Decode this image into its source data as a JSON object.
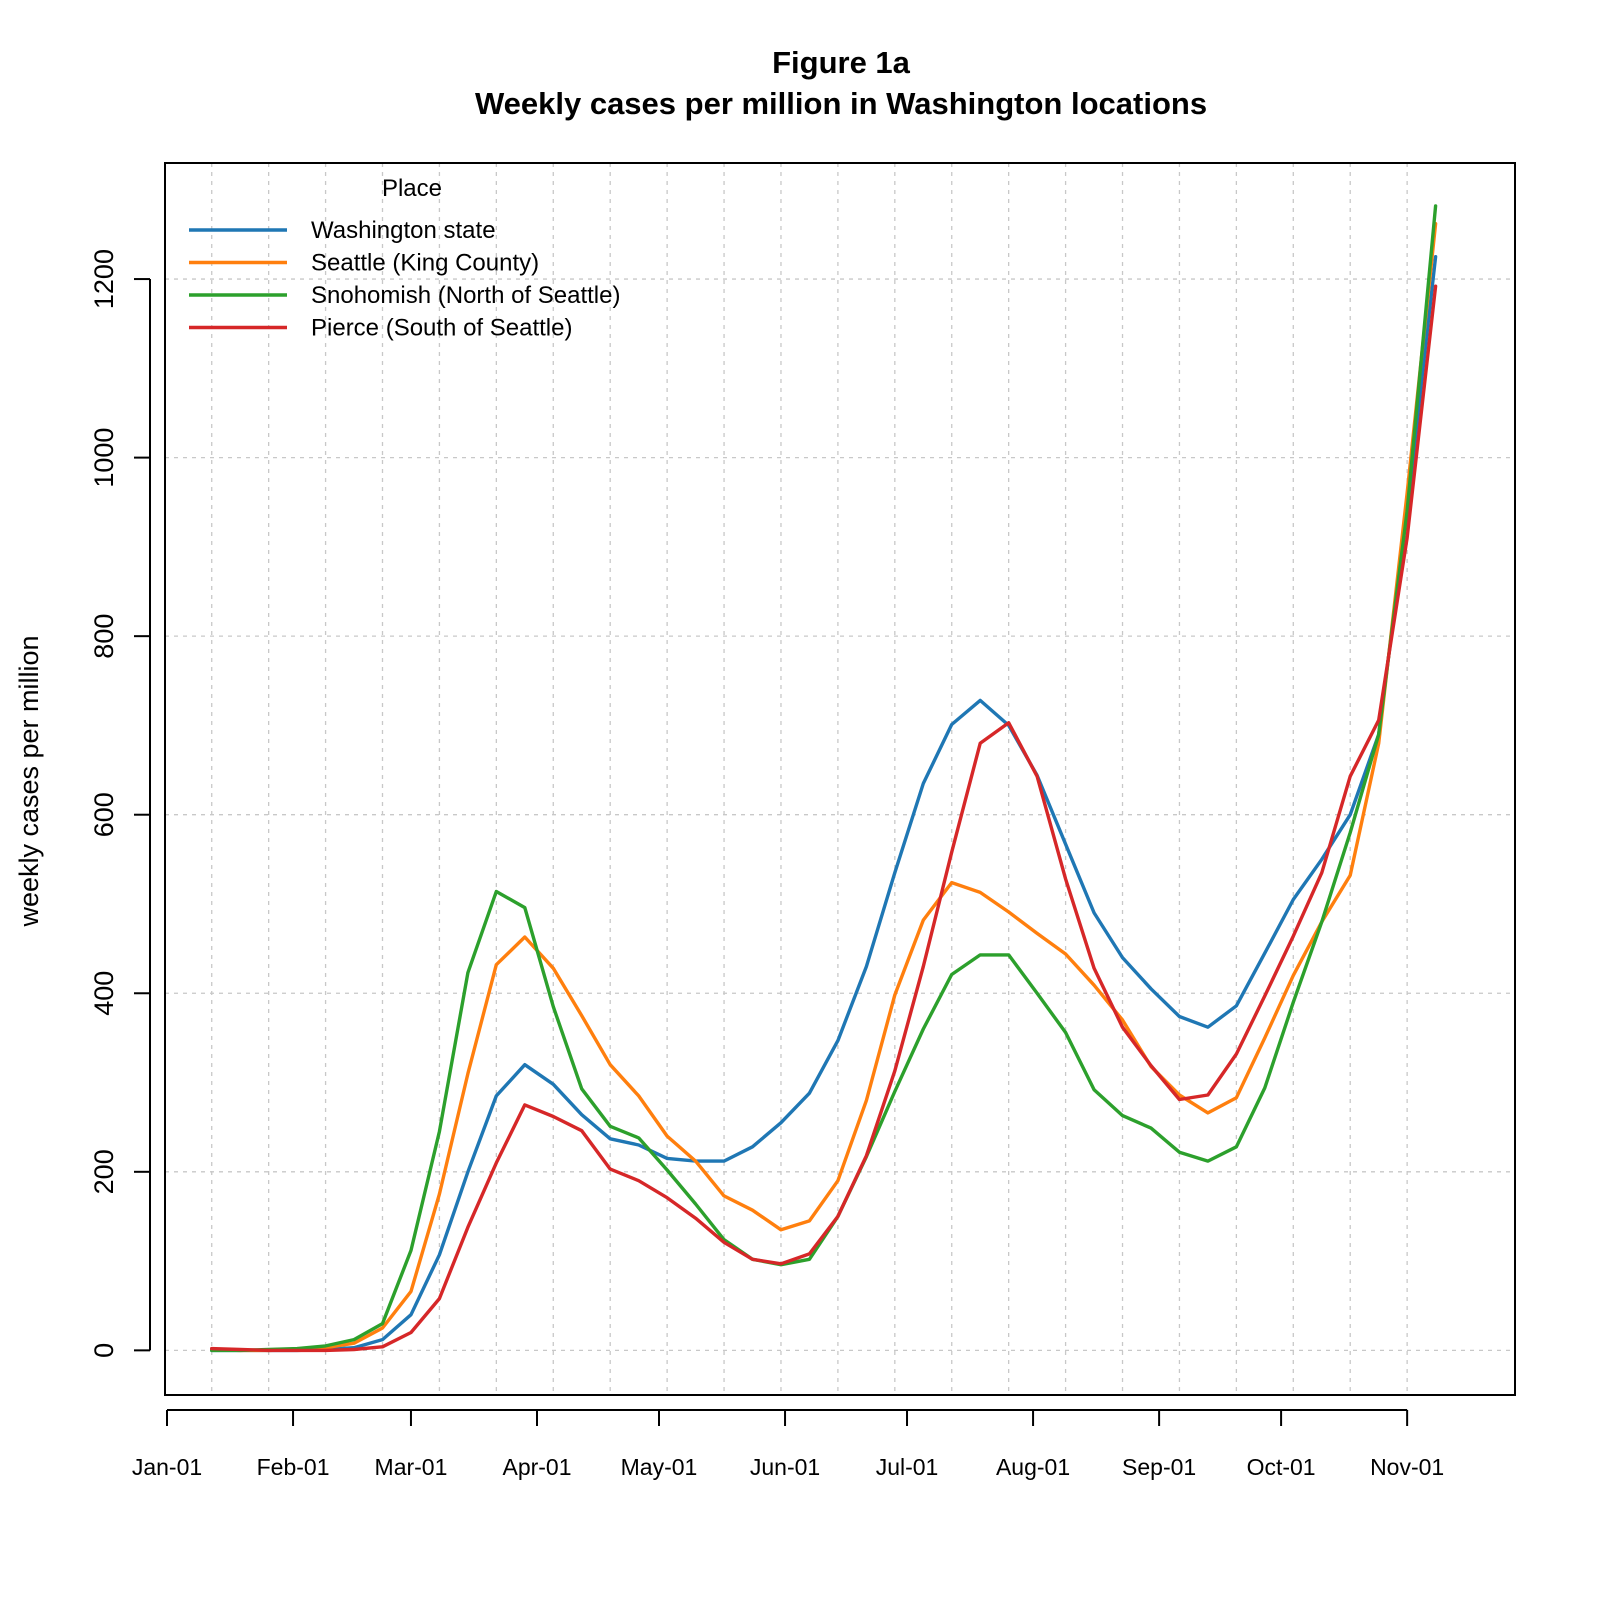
{
  "chart_data": {
    "type": "line",
    "title": "Figure 1a",
    "subtitle": "Weekly cases per million in Washington locations",
    "xlabel": "",
    "ylabel": "weekly cases per million",
    "x_axis": {
      "type": "date",
      "range": [
        "2020-01-01",
        "2020-11-14"
      ],
      "ticks": [
        {
          "date": "2020-01-01",
          "label": "Jan-01"
        },
        {
          "date": "2020-02-01",
          "label": "Feb-01"
        },
        {
          "date": "2020-03-01",
          "label": "Mar-01"
        },
        {
          "date": "2020-04-01",
          "label": "Apr-01"
        },
        {
          "date": "2020-05-01",
          "label": "May-01"
        },
        {
          "date": "2020-06-01",
          "label": "Jun-01"
        },
        {
          "date": "2020-07-01",
          "label": "Jul-01"
        },
        {
          "date": "2020-08-01",
          "label": "Aug-01"
        },
        {
          "date": "2020-09-01",
          "label": "Sep-01"
        },
        {
          "date": "2020-10-01",
          "label": "Oct-01"
        },
        {
          "date": "2020-11-01",
          "label": "Nov-01"
        }
      ]
    },
    "ylim": [
      -50,
      1330
    ],
    "yticks": [
      0,
      200,
      400,
      600,
      800,
      1000,
      1200
    ],
    "grid": true,
    "legend": {
      "title": "Place",
      "position": "top-left"
    },
    "x": [
      "2020-01-12",
      "2020-01-19",
      "2020-01-26",
      "2020-02-02",
      "2020-02-09",
      "2020-02-16",
      "2020-02-23",
      "2020-03-01",
      "2020-03-08",
      "2020-03-15",
      "2020-03-22",
      "2020-03-29",
      "2020-04-05",
      "2020-04-12",
      "2020-04-19",
      "2020-04-26",
      "2020-05-03",
      "2020-05-10",
      "2020-05-17",
      "2020-05-24",
      "2020-05-31",
      "2020-06-07",
      "2020-06-14",
      "2020-06-21",
      "2020-06-28",
      "2020-07-05",
      "2020-07-12",
      "2020-07-19",
      "2020-07-26",
      "2020-08-02",
      "2020-08-09",
      "2020-08-16",
      "2020-08-23",
      "2020-08-30",
      "2020-09-06",
      "2020-09-13",
      "2020-09-20",
      "2020-09-27",
      "2020-10-04",
      "2020-10-11",
      "2020-10-18",
      "2020-10-25",
      "2020-11-01",
      "2020-11-08"
    ],
    "series": [
      {
        "name": "Washington state",
        "color": "#1f77b4",
        "values": [
          0,
          0,
          0,
          0,
          1,
          3,
          12,
          40,
          107,
          200,
          285,
          320,
          298,
          264,
          237,
          230,
          215,
          212,
          212,
          228,
          255,
          288,
          347,
          430,
          535,
          635,
          701,
          728,
          700,
          644,
          567,
          490,
          440,
          405,
          374,
          362,
          386,
          445,
          505,
          550,
          600,
          690,
          940,
          1225
        ]
      },
      {
        "name": "Seattle (King County)",
        "color": "#ff7f0e",
        "values": [
          1,
          0,
          0,
          1,
          3,
          8,
          25,
          66,
          175,
          310,
          432,
          463,
          428,
          375,
          320,
          285,
          240,
          212,
          173,
          157,
          135,
          145,
          190,
          280,
          398,
          482,
          524,
          513,
          491,
          467,
          444,
          409,
          370,
          318,
          286,
          266,
          283,
          350,
          420,
          480,
          532,
          680,
          960,
          1262
        ]
      },
      {
        "name": "Snohomish (North of Seattle)",
        "color": "#2ca02c",
        "values": [
          0,
          0,
          1,
          2,
          5,
          12,
          30,
          112,
          245,
          423,
          514,
          496,
          385,
          293,
          251,
          238,
          202,
          164,
          124,
          102,
          96,
          102,
          150,
          217,
          290,
          360,
          421,
          443,
          443,
          400,
          356,
          292,
          263,
          249,
          222,
          212,
          228,
          294,
          390,
          480,
          580,
          690,
          940,
          1282
        ]
      },
      {
        "name": "Pierce (South of Seattle)",
        "color": "#d62728",
        "values": [
          2,
          1,
          0,
          0,
          0,
          1,
          4,
          20,
          58,
          138,
          210,
          275,
          262,
          246,
          203,
          190,
          171,
          148,
          121,
          102,
          97,
          108,
          150,
          218,
          313,
          430,
          558,
          680,
          703,
          643,
          528,
          428,
          362,
          319,
          281,
          286,
          332,
          397,
          464,
          535,
          643,
          706,
          910,
          1192
        ]
      }
    ]
  }
}
